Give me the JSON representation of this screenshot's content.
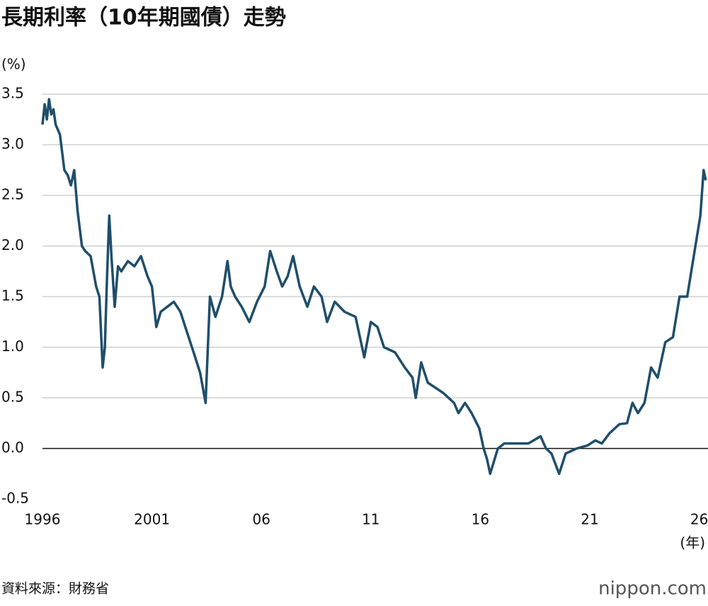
{
  "chart_data": {
    "type": "line",
    "title": "長期利率（10年期國債）走勢",
    "y_label": "(%)",
    "x_label": "(年)",
    "source": "資料來源：財務省",
    "credit": "nippon.com",
    "x": [
      1996.0,
      1996.1,
      1996.2,
      1996.3,
      1996.4,
      1996.5,
      1996.6,
      1996.8,
      1997.0,
      1997.15,
      1997.3,
      1997.45,
      1997.6,
      1997.8,
      1997.95,
      1998.2,
      1998.45,
      1998.6,
      1998.75,
      1998.85,
      1998.95,
      1999.05,
      1999.15,
      1999.3,
      1999.45,
      1999.6,
      1999.9,
      2000.2,
      2000.5,
      2000.8,
      2001.0,
      2001.2,
      2001.4,
      2001.7,
      2002.0,
      2002.3,
      2002.6,
      2002.9,
      2003.2,
      2003.45,
      2003.65,
      2003.9,
      2004.2,
      2004.45,
      2004.6,
      2004.8,
      2005.1,
      2005.45,
      2005.8,
      2006.15,
      2006.4,
      2006.7,
      2006.95,
      2007.2,
      2007.45,
      2007.75,
      2008.1,
      2008.4,
      2008.75,
      2009.0,
      2009.35,
      2009.8,
      2010.3,
      2010.55,
      2010.7,
      2011.0,
      2011.3,
      2011.6,
      2012.1,
      2012.55,
      2012.9,
      2013.05,
      2013.3,
      2013.6,
      2014.3,
      2014.8,
      2015.0,
      2015.3,
      2015.6,
      2015.95,
      2016.15,
      2016.3,
      2016.45,
      2016.8,
      2017.1,
      2017.6,
      2018.2,
      2018.75,
      2019.0,
      2019.25,
      2019.6,
      2019.9,
      2020.4,
      2020.9,
      2021.25,
      2021.55,
      2021.9,
      2022.35,
      2022.7,
      2022.95,
      2023.2,
      2023.5,
      2023.8,
      2024.1,
      2024.45,
      2024.8,
      2025.1,
      2025.45,
      2025.75,
      2026.05,
      2026.2,
      2026.3
    ],
    "series": [
      {
        "name": "長期利率",
        "color": "#1f4e6b",
        "values": [
          3.2,
          3.4,
          3.25,
          3.45,
          3.3,
          3.35,
          3.2,
          3.1,
          2.75,
          2.7,
          2.6,
          2.75,
          2.35,
          2.0,
          1.95,
          1.9,
          1.6,
          1.5,
          0.8,
          1.0,
          1.7,
          2.3,
          1.9,
          1.4,
          1.8,
          1.75,
          1.85,
          1.8,
          1.9,
          1.7,
          1.6,
          1.2,
          1.35,
          1.4,
          1.45,
          1.35,
          1.15,
          0.95,
          0.75,
          0.45,
          1.5,
          1.3,
          1.5,
          1.85,
          1.6,
          1.5,
          1.4,
          1.25,
          1.45,
          1.6,
          1.95,
          1.75,
          1.6,
          1.7,
          1.9,
          1.6,
          1.4,
          1.6,
          1.5,
          1.25,
          1.45,
          1.35,
          1.3,
          1.05,
          0.9,
          1.25,
          1.2,
          1.0,
          0.95,
          0.8,
          0.7,
          0.5,
          0.85,
          0.65,
          0.55,
          0.45,
          0.35,
          0.45,
          0.35,
          0.2,
          0.0,
          -0.1,
          -0.25,
          0.0,
          0.05,
          0.05,
          0.05,
          0.12,
          0.0,
          -0.05,
          -0.25,
          -0.05,
          0.0,
          0.03,
          0.08,
          0.05,
          0.15,
          0.24,
          0.25,
          0.45,
          0.35,
          0.45,
          0.8,
          0.7,
          1.05,
          1.1,
          1.5,
          1.5,
          1.9,
          2.3,
          2.75,
          2.65
        ]
      }
    ],
    "xlim": [
      1996,
      2026.4
    ],
    "xticks": [
      1996,
      2001,
      {
        "value": 2006,
        "label": "06"
      },
      {
        "value": 2011,
        "label": "11"
      },
      {
        "value": 2016,
        "label": "16"
      },
      {
        "value": 2021,
        "label": "21"
      },
      {
        "value": 2026,
        "label": "26"
      }
    ],
    "ylim": [
      -0.5,
      3.5
    ],
    "yticks": [
      -0.5,
      {
        "value": 0,
        "label": "0.0"
      },
      0.5,
      {
        "value": 1,
        "label": "1.0"
      },
      1.5,
      {
        "value": 2,
        "label": "2.0"
      },
      2.5,
      {
        "value": 3,
        "label": "3.0"
      },
      3.5
    ],
    "grid": true
  }
}
